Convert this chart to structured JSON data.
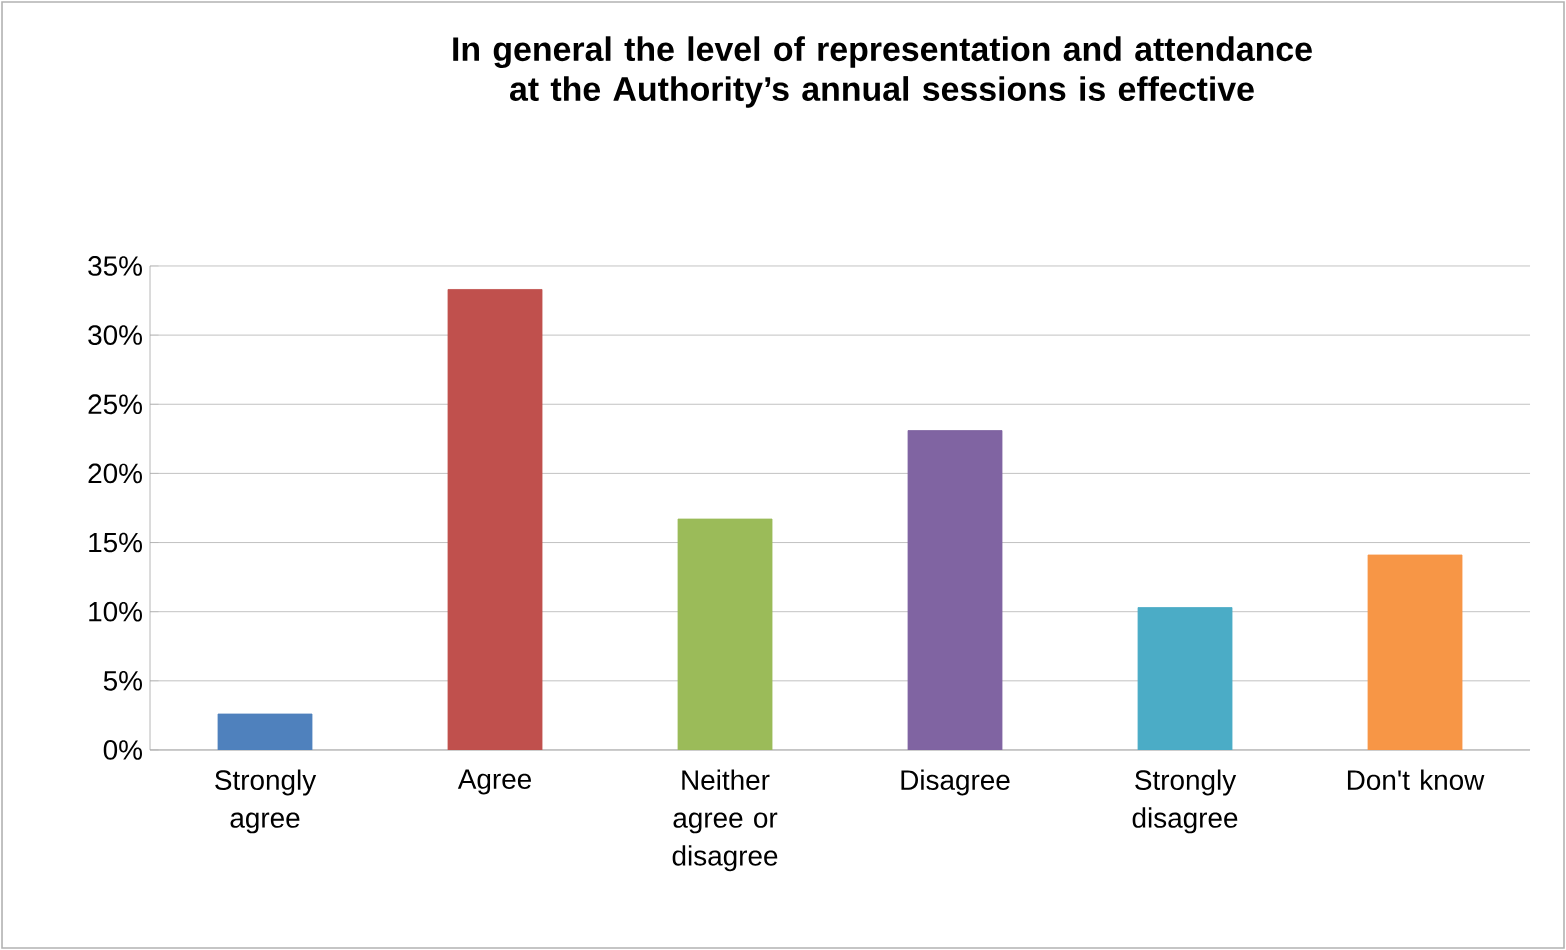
{
  "chart_data": {
    "type": "bar",
    "title": "In general the level of representation and attendance at the Authority’s annual sessions is effective",
    "categories": [
      "Strongly agree",
      "Agree",
      "Neither agree or disagree",
      "Disagree",
      "Strongly disagree",
      "Don't know"
    ],
    "values": [
      2.6,
      33.3,
      16.7,
      23.1,
      10.3,
      14.1
    ],
    "colors": [
      "#4f81bd",
      "#c0504d",
      "#9bbb59",
      "#8064a2",
      "#4bacc6",
      "#f79646"
    ],
    "ylim": [
      0,
      35
    ],
    "yticks": [
      {
        "value": 0,
        "label": "0%"
      },
      {
        "value": 5,
        "label": "5%"
      },
      {
        "value": 10,
        "label": "10%"
      },
      {
        "value": 15,
        "label": "15%"
      },
      {
        "value": 20,
        "label": "20%"
      },
      {
        "value": 25,
        "label": "25%"
      },
      {
        "value": 30,
        "label": "30%"
      },
      {
        "value": 35,
        "label": "35%"
      }
    ],
    "grid": "y"
  }
}
